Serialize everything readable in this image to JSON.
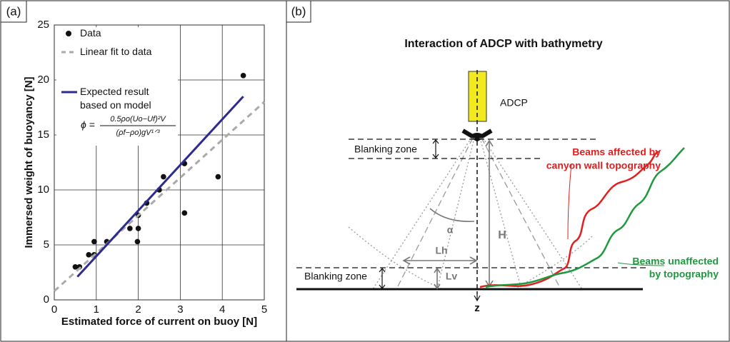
{
  "chart_data": {
    "type": "scatter",
    "panel_label": "(a)",
    "xlabel": "Estimated force of current on buoy [N]",
    "ylabel": "Immersed weight of buoyancy [N]",
    "xlim": [
      0,
      5
    ],
    "ylim": [
      0,
      25
    ],
    "xticks": [
      0,
      1,
      2,
      3,
      4,
      5
    ],
    "yticks": [
      0,
      5,
      10,
      15,
      20,
      25
    ],
    "grid": true,
    "series": [
      {
        "name": "Data",
        "color": "#111111",
        "mode": "markers",
        "x": [
          0.5,
          0.6,
          0.82,
          0.95,
          0.95,
          1.25,
          1.8,
          1.98,
          2.0,
          2.0,
          2.2,
          2.5,
          2.6,
          3.1,
          3.1,
          3.9,
          4.5
        ],
        "values": [
          3.0,
          3.0,
          4.1,
          4.1,
          5.3,
          5.3,
          6.5,
          5.3,
          6.5,
          7.7,
          8.8,
          10.0,
          11.2,
          12.4,
          7.9,
          11.2,
          20.4
        ]
      },
      {
        "name": "Linear fit to data",
        "color": "#aaaaaa",
        "mode": "dashed-line",
        "x": [
          0,
          5
        ],
        "values": [
          0.8,
          18
        ]
      },
      {
        "name": "Expected result based on model",
        "color": "#2e2b8f",
        "mode": "line",
        "x": [
          0.55,
          4.5
        ],
        "values": [
          2.1,
          18.5
        ]
      }
    ],
    "formula": {
      "lhs": "ϕ =",
      "numerator": "0.5ρo(Uo−Uf)²V",
      "denominator": "(ρf−ρo)gV¹ᐟ³"
    }
  },
  "diagram": {
    "panel_label": "(b)",
    "title": "Interaction of ADCP with bathymetry",
    "instrument": "ADCP",
    "blanking_top": "Blanking zone",
    "blanking_bottom": "Blanking zone",
    "affected": [
      "Beams affected by",
      "canyon wall topography"
    ],
    "unaffected": [
      "Beams unaffected",
      "by topography"
    ],
    "alpha": "α",
    "H": "H",
    "Lh": "Lh",
    "Lv": "Lv",
    "z": "z"
  }
}
